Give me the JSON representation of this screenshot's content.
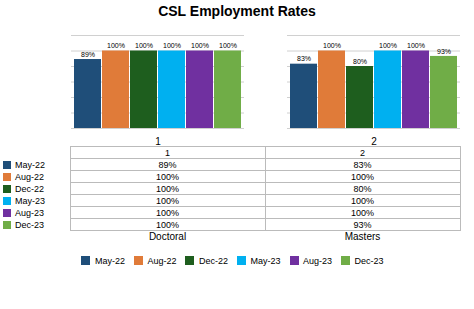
{
  "chart_data": {
    "type": "bar",
    "title": "CSL Employment Rates",
    "categories": [
      "1",
      "2"
    ],
    "series": [
      {
        "name": "May-22",
        "color": "#1f4e79",
        "values": [
          89,
          83
        ],
        "value_labels": [
          "89%",
          "83%"
        ]
      },
      {
        "name": "Aug-22",
        "color": "#e07b39",
        "values": [
          100,
          100
        ],
        "value_labels": [
          "100%",
          "100%"
        ]
      },
      {
        "name": "Dec-22",
        "color": "#1e5e1e",
        "values": [
          100,
          80
        ],
        "value_labels": [
          "100%",
          "80%"
        ]
      },
      {
        "name": "May-23",
        "color": "#00b0f0",
        "values": [
          100,
          100
        ],
        "value_labels": [
          "100%",
          "100%"
        ]
      },
      {
        "name": "Aug-23",
        "color": "#7030a0",
        "values": [
          100,
          100
        ],
        "value_labels": [
          "100%",
          "100%"
        ]
      },
      {
        "name": "Dec-23",
        "color": "#70ad47",
        "values": [
          100,
          93
        ],
        "value_labels": [
          "100%",
          "93%"
        ]
      }
    ],
    "ylim": [
      0,
      120
    ],
    "yticks": [
      0,
      20,
      40,
      60,
      80,
      100,
      120
    ],
    "grid": true,
    "data_labels": true,
    "tick_labels": "x",
    "legend": "bottom",
    "table": {
      "columns": [
        "1",
        "2"
      ],
      "rows": [
        [
          "May-22",
          "89%",
          "83%"
        ],
        [
          "Aug-22",
          "100%",
          "100%"
        ],
        [
          "Dec-22",
          "100%",
          "80%"
        ],
        [
          "May-23",
          "100%",
          "100%"
        ],
        [
          "Aug-23",
          "100%",
          "100%"
        ],
        [
          "Dec-23",
          "100%",
          "93%"
        ]
      ],
      "column_names": [
        "Doctoral",
        "Masters"
      ]
    }
  }
}
